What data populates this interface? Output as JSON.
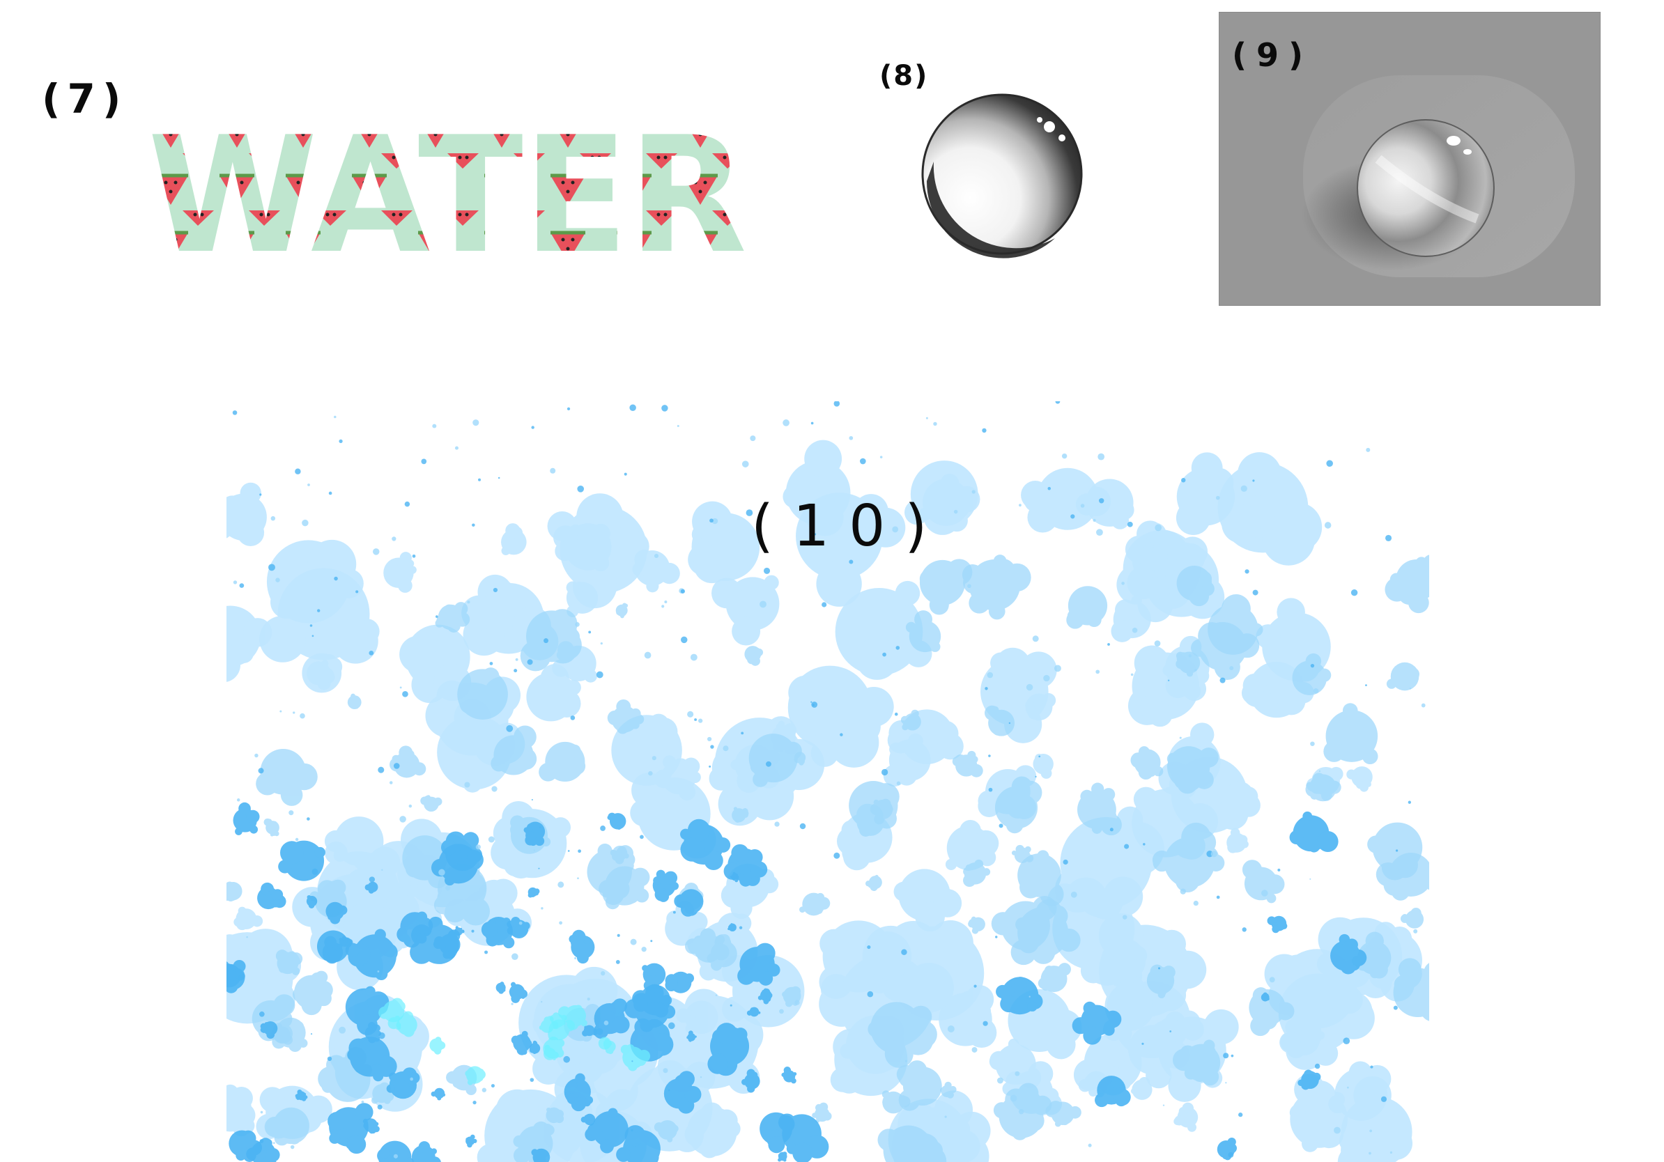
{
  "labels": {
    "item7": "(7)",
    "item8": "(8)",
    "item9": "(9)",
    "item10": "(10)"
  },
  "water_art": {
    "text": "WATER",
    "fill_color": "#bfe6cf",
    "pattern_color": "#e8505b",
    "rind_color": "#5c9a4a"
  },
  "sphere_sketch": {
    "shade_color": "#1a1a1a"
  },
  "droplet_panel": {
    "background_color": "#979797"
  },
  "splatter": {
    "light_color": "#bfe6ff",
    "mid_color": "#9ed8fb",
    "dark_color": "#4cb4f3",
    "accent_color": "#6ff0ff"
  }
}
